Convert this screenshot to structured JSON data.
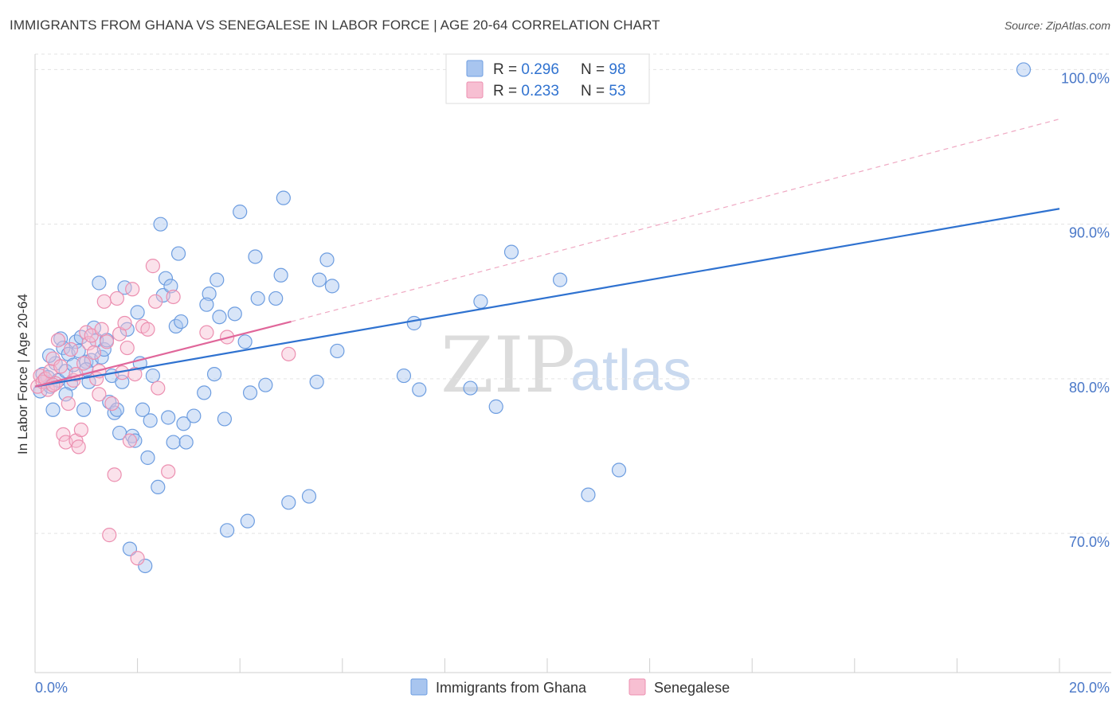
{
  "header": {
    "title": "IMMIGRANTS FROM GHANA VS SENEGALESE IN LABOR FORCE | AGE 20-64 CORRELATION CHART",
    "source": "Source: ZipAtlas.com"
  },
  "watermark": {
    "zip": "ZIP",
    "atlas": "atlas"
  },
  "legend": [
    {
      "r_label": "R = ",
      "r_value": "0.296",
      "n_label": "N = ",
      "n_value": "98",
      "color": "#a8c5ef",
      "stroke": "#6d9de0"
    },
    {
      "r_label": "R = ",
      "r_value": "0.233",
      "n_label": "N = ",
      "n_value": "53",
      "color": "#f7bfd2",
      "stroke": "#ec8fb0"
    }
  ],
  "bottom_legend": [
    "Immigrants from Ghana",
    "Senegalese"
  ],
  "chart_data": {
    "type": "scatter",
    "title": "IMMIGRANTS FROM GHANA VS SENEGALESE IN LABOR FORCE | AGE 20-64 CORRELATION CHART",
    "xlabel": "",
    "ylabel": "In Labor Force | Age 20-64",
    "xlim": [
      0,
      20
    ],
    "ylim": [
      61,
      101
    ],
    "x_tick_labels": [
      "0.0%",
      "20.0%"
    ],
    "y_ticks": [
      70,
      80,
      90,
      100
    ],
    "y_tick_labels": [
      "70.0%",
      "80.0%",
      "90.0%",
      "100.0%"
    ],
    "grid": true,
    "legend_position": "top-center",
    "colors": {
      "ghana": "#6d9de0",
      "senegalese": "#ec8fb0",
      "ghana_trend": "#2f72d0",
      "senegalese_trend": "#e0669a"
    },
    "series": [
      {
        "name": "Immigrants from Ghana",
        "points": [
          [
            0.1,
            79.2
          ],
          [
            0.15,
            80.3
          ],
          [
            0.2,
            79.8
          ],
          [
            0.25,
            80.1
          ],
          [
            0.3,
            79.5
          ],
          [
            0.35,
            78.0
          ],
          [
            0.4,
            81.0
          ],
          [
            0.45,
            79.9
          ],
          [
            0.5,
            82.6
          ],
          [
            0.55,
            82.0
          ],
          [
            0.6,
            80.5
          ],
          [
            0.65,
            81.6
          ],
          [
            0.7,
            79.7
          ],
          [
            0.75,
            80.9
          ],
          [
            0.8,
            82.4
          ],
          [
            0.85,
            81.8
          ],
          [
            0.9,
            82.7
          ],
          [
            0.95,
            78.0
          ],
          [
            1.0,
            81.1
          ],
          [
            1.05,
            79.8
          ],
          [
            1.1,
            81.2
          ],
          [
            1.15,
            83.3
          ],
          [
            1.2,
            82.5
          ],
          [
            1.25,
            86.2
          ],
          [
            1.3,
            81.4
          ],
          [
            1.35,
            81.9
          ],
          [
            1.4,
            82.5
          ],
          [
            1.45,
            78.5
          ],
          [
            1.5,
            80.2
          ],
          [
            1.55,
            77.8
          ],
          [
            1.6,
            78.0
          ],
          [
            1.65,
            76.5
          ],
          [
            1.7,
            79.8
          ],
          [
            1.75,
            85.9
          ],
          [
            1.8,
            83.2
          ],
          [
            1.85,
            69.0
          ],
          [
            1.9,
            76.3
          ],
          [
            1.95,
            76.0
          ],
          [
            2.0,
            84.3
          ],
          [
            2.05,
            81.0
          ],
          [
            2.1,
            78.0
          ],
          [
            2.15,
            67.9
          ],
          [
            2.2,
            74.9
          ],
          [
            2.25,
            77.3
          ],
          [
            2.3,
            80.2
          ],
          [
            2.4,
            73.0
          ],
          [
            2.45,
            90.0
          ],
          [
            2.5,
            85.4
          ],
          [
            2.55,
            86.5
          ],
          [
            2.6,
            77.5
          ],
          [
            2.65,
            86.0
          ],
          [
            2.7,
            75.9
          ],
          [
            2.75,
            83.4
          ],
          [
            2.8,
            88.1
          ],
          [
            2.85,
            83.7
          ],
          [
            2.9,
            77.1
          ],
          [
            2.95,
            75.9
          ],
          [
            3.1,
            77.6
          ],
          [
            3.3,
            79.1
          ],
          [
            3.4,
            85.5
          ],
          [
            3.35,
            84.8
          ],
          [
            3.5,
            80.3
          ],
          [
            3.6,
            84.0
          ],
          [
            3.55,
            86.4
          ],
          [
            3.7,
            77.4
          ],
          [
            3.75,
            70.2
          ],
          [
            3.9,
            84.2
          ],
          [
            4.0,
            90.8
          ],
          [
            4.1,
            82.4
          ],
          [
            4.15,
            70.8
          ],
          [
            4.2,
            79.1
          ],
          [
            4.3,
            87.9
          ],
          [
            4.35,
            85.2
          ],
          [
            4.5,
            79.6
          ],
          [
            4.7,
            85.2
          ],
          [
            4.8,
            86.7
          ],
          [
            4.85,
            91.7
          ],
          [
            4.95,
            72.0
          ],
          [
            5.35,
            72.4
          ],
          [
            5.5,
            79.8
          ],
          [
            5.55,
            86.4
          ],
          [
            5.7,
            87.7
          ],
          [
            5.8,
            86.0
          ],
          [
            5.9,
            81.8
          ],
          [
            7.4,
            83.6
          ],
          [
            7.2,
            80.2
          ],
          [
            7.5,
            79.3
          ],
          [
            8.5,
            79.4
          ],
          [
            8.7,
            85.0
          ],
          [
            9.0,
            78.2
          ],
          [
            9.3,
            88.2
          ],
          [
            10.25,
            86.4
          ],
          [
            10.8,
            72.5
          ],
          [
            11.4,
            74.1
          ],
          [
            19.3,
            100.0
          ],
          [
            0.28,
            81.5
          ],
          [
            0.6,
            79.0
          ],
          [
            1.0,
            80.6
          ]
        ],
        "trend": {
          "x": [
            0,
            20
          ],
          "y": [
            79.5,
            91.0
          ]
        }
      },
      {
        "name": "Senegalese",
        "points": [
          [
            0.05,
            79.5
          ],
          [
            0.1,
            80.2
          ],
          [
            0.15,
            79.8
          ],
          [
            0.2,
            80.0
          ],
          [
            0.25,
            79.3
          ],
          [
            0.3,
            80.5
          ],
          [
            0.35,
            81.3
          ],
          [
            0.4,
            79.7
          ],
          [
            0.45,
            82.5
          ],
          [
            0.5,
            80.8
          ],
          [
            0.55,
            76.4
          ],
          [
            0.6,
            75.9
          ],
          [
            0.65,
            78.4
          ],
          [
            0.7,
            81.9
          ],
          [
            0.75,
            79.9
          ],
          [
            0.8,
            76.0
          ],
          [
            0.85,
            75.6
          ],
          [
            0.9,
            76.7
          ],
          [
            0.95,
            81.0
          ],
          [
            1.0,
            83.0
          ],
          [
            1.05,
            82.3
          ],
          [
            1.1,
            82.8
          ],
          [
            1.15,
            81.7
          ],
          [
            1.2,
            80.0
          ],
          [
            1.25,
            79.0
          ],
          [
            1.3,
            83.2
          ],
          [
            1.35,
            85.0
          ],
          [
            1.4,
            82.4
          ],
          [
            1.45,
            69.9
          ],
          [
            1.5,
            78.4
          ],
          [
            1.55,
            73.8
          ],
          [
            1.6,
            85.2
          ],
          [
            1.65,
            82.9
          ],
          [
            1.7,
            80.4
          ],
          [
            1.75,
            83.6
          ],
          [
            1.8,
            82.0
          ],
          [
            1.85,
            76.0
          ],
          [
            1.9,
            85.8
          ],
          [
            1.95,
            80.3
          ],
          [
            2.0,
            68.4
          ],
          [
            2.1,
            83.4
          ],
          [
            2.2,
            83.2
          ],
          [
            2.3,
            87.3
          ],
          [
            2.35,
            85.0
          ],
          [
            2.4,
            79.4
          ],
          [
            2.6,
            74.0
          ],
          [
            2.7,
            85.3
          ],
          [
            3.35,
            83.0
          ],
          [
            3.75,
            82.7
          ],
          [
            4.95,
            81.6
          ],
          [
            0.8,
            80.3
          ],
          [
            0.35,
            79.6
          ],
          [
            1.25,
            80.5
          ]
        ],
        "trend": {
          "x": [
            0,
            5
          ],
          "y": [
            79.5,
            83.7
          ]
        },
        "extrapolation": {
          "x": [
            5,
            20
          ],
          "y": [
            83.7,
            96.8
          ]
        }
      }
    ]
  }
}
